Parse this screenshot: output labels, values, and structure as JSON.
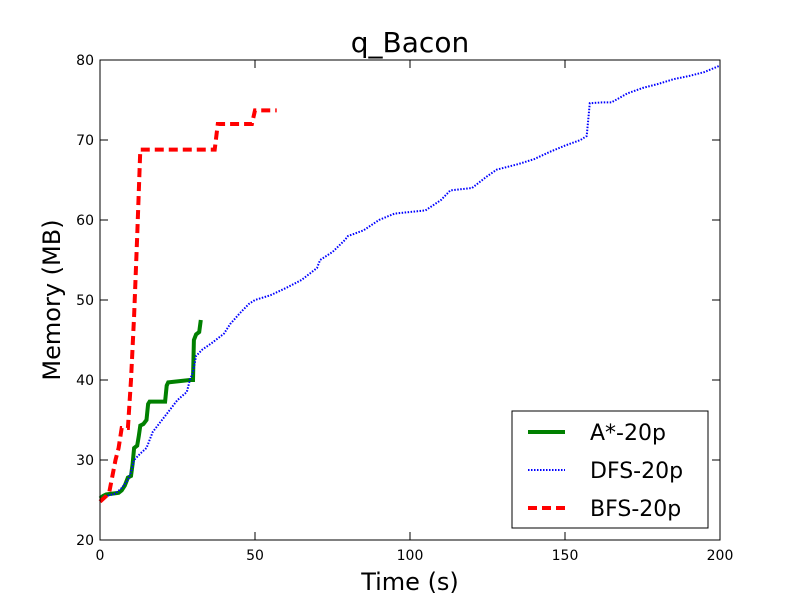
{
  "chart_data": {
    "type": "line",
    "title": "q_Bacon",
    "xlabel": "Time (s)",
    "ylabel": "Memory (MB)",
    "xlim": [
      0,
      200
    ],
    "ylim": [
      20,
      80
    ],
    "xticks": [
      0,
      50,
      100,
      150,
      200
    ],
    "yticks": [
      20,
      30,
      40,
      50,
      60,
      70,
      80
    ],
    "grid": false,
    "legend_position": "lower-right",
    "series": [
      {
        "name": "A*-20p",
        "color": "#008000",
        "style": "solid",
        "points": [
          [
            0,
            25.2
          ],
          [
            1,
            25.5
          ],
          [
            2,
            25.7
          ],
          [
            4,
            25.8
          ],
          [
            6,
            25.9
          ],
          [
            7,
            26.2
          ],
          [
            8,
            26.8
          ],
          [
            9,
            27.8
          ],
          [
            10,
            28.0
          ],
          [
            10.5,
            29.5
          ],
          [
            11,
            31.5
          ],
          [
            12,
            31.8
          ],
          [
            12.5,
            33.0
          ],
          [
            13,
            34.3
          ],
          [
            14,
            34.5
          ],
          [
            15,
            35.0
          ],
          [
            15.5,
            37.0
          ],
          [
            16,
            37.3
          ],
          [
            21,
            37.3
          ],
          [
            21.5,
            39.3
          ],
          [
            22,
            39.7
          ],
          [
            29,
            40.0
          ],
          [
            30,
            40.0
          ],
          [
            30.3,
            45.0
          ],
          [
            31,
            45.7
          ],
          [
            32,
            46.0
          ],
          [
            32.5,
            47.5
          ]
        ]
      },
      {
        "name": "DFS-20p",
        "color": "#0000ff",
        "style": "dotted",
        "points": [
          [
            0,
            25.0
          ],
          [
            2,
            25.5
          ],
          [
            5,
            25.8
          ],
          [
            7,
            26.5
          ],
          [
            9,
            27.5
          ],
          [
            10,
            28.5
          ],
          [
            11,
            30.0
          ],
          [
            13,
            30.8
          ],
          [
            15,
            31.5
          ],
          [
            17,
            33.5
          ],
          [
            20,
            35.0
          ],
          [
            22,
            36.0
          ],
          [
            25,
            37.5
          ],
          [
            28,
            38.5
          ],
          [
            29,
            40.0
          ],
          [
            30,
            41.0
          ],
          [
            31,
            43.0
          ],
          [
            33,
            43.8
          ],
          [
            36,
            44.6
          ],
          [
            40,
            45.8
          ],
          [
            42,
            47.0
          ],
          [
            45,
            48.3
          ],
          [
            48,
            49.5
          ],
          [
            50,
            50.0
          ],
          [
            55,
            50.6
          ],
          [
            60,
            51.5
          ],
          [
            65,
            52.5
          ],
          [
            70,
            54.0
          ],
          [
            71,
            55.0
          ],
          [
            75,
            56.0
          ],
          [
            79,
            57.5
          ],
          [
            80,
            58.0
          ],
          [
            85,
            58.7
          ],
          [
            90,
            60.0
          ],
          [
            95,
            60.8
          ],
          [
            100,
            61.0
          ],
          [
            105,
            61.2
          ],
          [
            110,
            62.5
          ],
          [
            113,
            63.7
          ],
          [
            120,
            64.0
          ],
          [
            125,
            65.5
          ],
          [
            128,
            66.3
          ],
          [
            135,
            67.0
          ],
          [
            140,
            67.6
          ],
          [
            145,
            68.5
          ],
          [
            150,
            69.3
          ],
          [
            155,
            70.0
          ],
          [
            157,
            70.5
          ],
          [
            158,
            74.6
          ],
          [
            162,
            74.7
          ],
          [
            165,
            74.7
          ],
          [
            170,
            75.8
          ],
          [
            175,
            76.5
          ],
          [
            180,
            77.0
          ],
          [
            185,
            77.6
          ],
          [
            190,
            78.0
          ],
          [
            195,
            78.5
          ],
          [
            200,
            79.3
          ]
        ]
      },
      {
        "name": "BFS-20p",
        "color": "#ff0000",
        "style": "dashed",
        "points": [
          [
            0,
            24.8
          ],
          [
            2,
            25.5
          ],
          [
            3,
            26.0
          ],
          [
            4,
            28.0
          ],
          [
            5,
            30.0
          ],
          [
            6,
            31.5
          ],
          [
            7,
            34.0
          ],
          [
            8,
            34.0
          ],
          [
            9,
            34.0
          ],
          [
            10,
            40.0
          ],
          [
            11,
            48.0
          ],
          [
            12,
            58.0
          ],
          [
            13,
            68.8
          ],
          [
            20,
            68.8
          ],
          [
            30,
            68.8
          ],
          [
            37,
            68.8
          ],
          [
            38,
            72.0
          ],
          [
            49,
            72.0
          ],
          [
            50,
            73.7
          ],
          [
            57,
            73.7
          ]
        ]
      }
    ]
  }
}
